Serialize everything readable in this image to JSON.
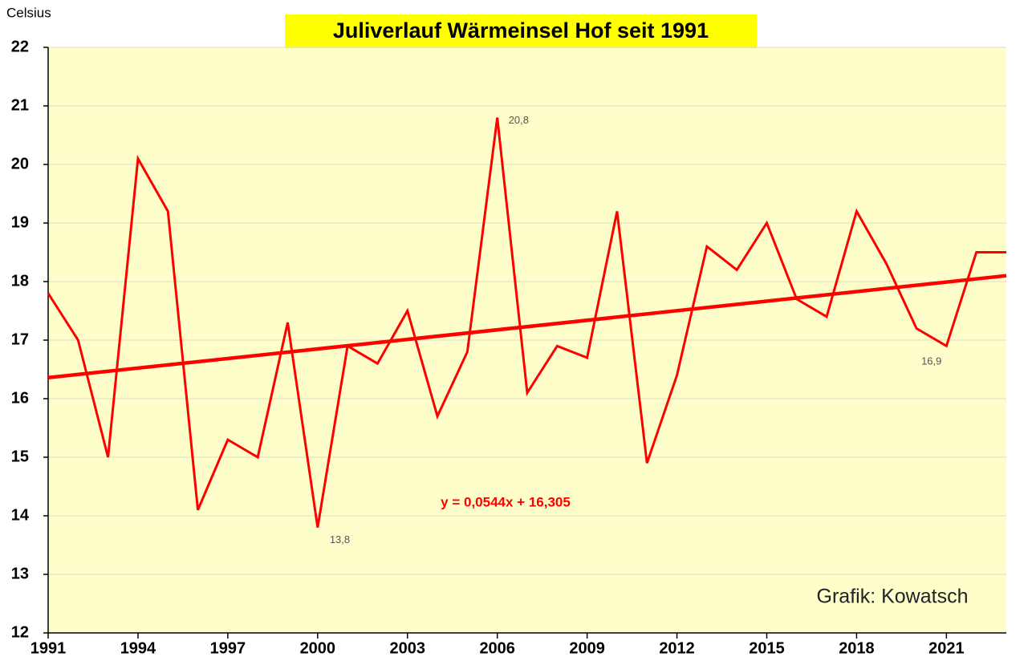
{
  "chart_data": {
    "type": "line",
    "title": "Juliverlauf Wärmeinsel Hof seit 1991",
    "y_label": "Celsius",
    "watermark": "Grafik: Kowatsch",
    "x": [
      1991,
      1992,
      1993,
      1994,
      1995,
      1996,
      1997,
      1998,
      1999,
      2000,
      2001,
      2002,
      2003,
      2004,
      2005,
      2006,
      2007,
      2008,
      2009,
      2010,
      2011,
      2012,
      2013,
      2014,
      2015,
      2016,
      2017,
      2018,
      2019,
      2020,
      2021,
      2022,
      2023
    ],
    "series": [
      {
        "color": "#ff0000",
        "values": [
          17.8,
          17.0,
          15.0,
          20.1,
          19.2,
          14.1,
          15.3,
          15.0,
          17.3,
          13.8,
          16.9,
          16.6,
          17.5,
          15.7,
          16.8,
          20.8,
          16.1,
          16.9,
          16.7,
          19.2,
          14.9,
          16.4,
          18.6,
          18.2,
          19.0,
          17.7,
          17.4,
          19.2,
          18.3,
          17.2,
          16.9,
          18.5,
          18.5
        ],
        "value_labels": [
          null,
          null,
          null,
          null,
          null,
          null,
          null,
          null,
          null,
          "13,8",
          null,
          null,
          null,
          null,
          null,
          "20,8",
          null,
          null,
          null,
          null,
          null,
          null,
          null,
          null,
          null,
          null,
          null,
          null,
          null,
          null,
          "16,9",
          null,
          null
        ]
      }
    ],
    "trendline": {
      "label": "y = 0,0544x + 16,305",
      "color": "#ff0000",
      "x": [
        1991,
        2023
      ],
      "values": [
        16.36,
        18.1
      ]
    },
    "xlim": [
      1991,
      2023
    ],
    "xticks": [
      1991,
      1994,
      1997,
      2000,
      2003,
      2006,
      2009,
      2012,
      2015,
      2018,
      2021
    ],
    "ylim": [
      12,
      22
    ],
    "yticks": [
      12,
      13,
      14,
      15,
      16,
      17,
      18,
      19,
      20,
      21,
      22
    ],
    "grid": true,
    "plot_background": "#fefecb",
    "title_background": "#ffff00"
  }
}
